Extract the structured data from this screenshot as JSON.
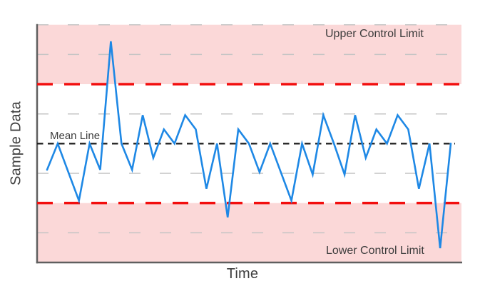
{
  "labels": {
    "y_axis": "Sample Data",
    "x_axis": "Time",
    "ucl": "Upper Control Limit",
    "lcl": "Lower Control Limit",
    "mean": "Mean Line"
  },
  "colors": {
    "line": "#1e88e5",
    "control_limit": "#f20f0f",
    "mean_line": "#1a1a1a",
    "grid": "#c4c4c4",
    "zone_fill": "#fbd8d8",
    "axis": "#5f5f5f",
    "text": "#3d3d3d",
    "background": "#ffffff"
  },
  "chart_data": {
    "type": "line",
    "title": "",
    "xlabel": "Time",
    "ylabel": "Sample Data",
    "ylim": [
      0,
      100
    ],
    "x_tick_labels": [],
    "y_tick_labels": [],
    "grid": "dashed horizontal",
    "gridlines_y": [
      12.5,
      37.5,
      62.5,
      87.5,
      100
    ],
    "legend": "none",
    "series": [
      {
        "name": "Sample Data",
        "color": "#1e88e5",
        "values": [
          39,
          50,
          38,
          26,
          50,
          39,
          93,
          50,
          39,
          62,
          44,
          56,
          50,
          62,
          56,
          31,
          50,
          19,
          56,
          50,
          38,
          50,
          38,
          26,
          50,
          37,
          62,
          50,
          37,
          62,
          44,
          56,
          50,
          62,
          56,
          31,
          50,
          6,
          50
        ]
      }
    ],
    "reference_lines": [
      {
        "name": "ucl",
        "label": "Upper Control Limit",
        "value": 75,
        "style": "dashed",
        "color": "#f20f0f"
      },
      {
        "name": "mean",
        "label": "Mean Line",
        "value": 50,
        "style": "dashed",
        "color": "#1a1a1a"
      },
      {
        "name": "lcl",
        "label": "Lower Control Limit",
        "value": 25,
        "style": "dashed",
        "color": "#f20f0f"
      }
    ],
    "zones": [
      {
        "name": "above-ucl",
        "from": 75,
        "to": 100,
        "color": "#fbd8d8"
      },
      {
        "name": "below-lcl",
        "from": 0,
        "to": 25,
        "color": "#fbd8d8"
      }
    ]
  }
}
